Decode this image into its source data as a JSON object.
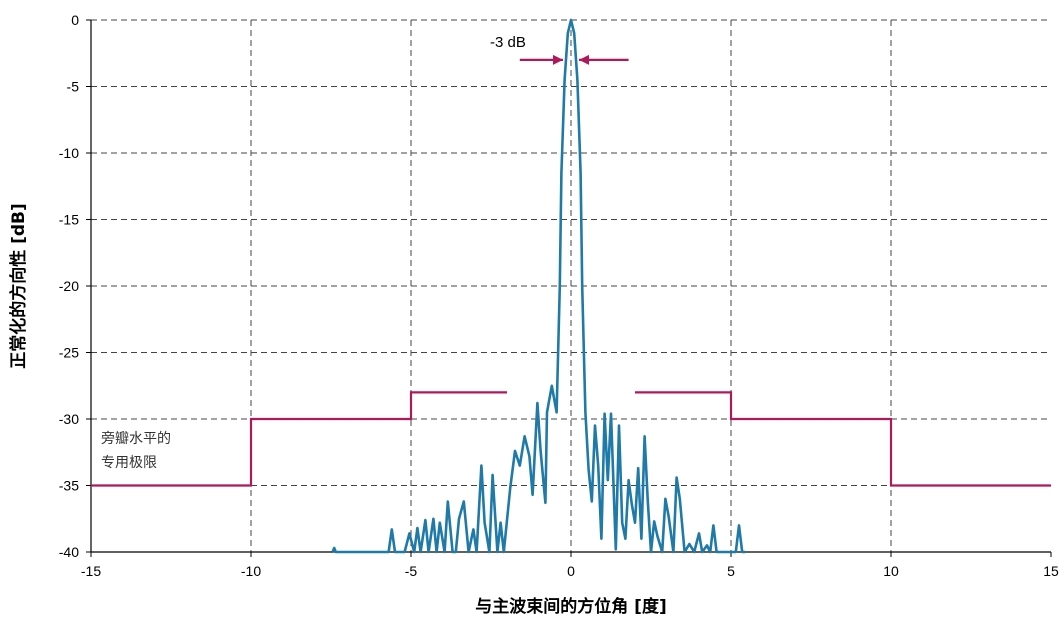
{
  "chart_data": {
    "type": "line",
    "xlabel": "与主波束间的方位角 [度]",
    "ylabel": "正常化的方向性 [dB]",
    "xlim": [
      -15,
      15
    ],
    "ylim": [
      -40,
      0
    ],
    "x_ticks": [
      "-15",
      "-10",
      "-5",
      "0",
      "5",
      "10",
      "15"
    ],
    "y_ticks": [
      "0",
      "-5",
      "-10",
      "-15",
      "-20",
      "-25",
      "-30",
      "-35",
      "-40"
    ],
    "grid": "dashed",
    "colors": {
      "pattern": "#1f7aa8",
      "limit": "#b0185a",
      "grid": "#444444"
    },
    "series": [
      {
        "name": "",
        "x": [
          -7.45,
          -7.4,
          -7.35,
          -5.7,
          -5.6,
          -5.5,
          -5.4,
          -5.2,
          -5.05,
          -4.9,
          -4.8,
          -4.7,
          -4.55,
          -4.45,
          -4.3,
          -4.2,
          -4.1,
          -3.95,
          -3.85,
          -3.7,
          -3.6,
          -3.5,
          -3.35,
          -3.2,
          -3.05,
          -2.95,
          -2.8,
          -2.7,
          -2.55,
          -2.45,
          -2.3,
          -2.2,
          -2.1,
          -1.9,
          -1.75,
          -1.6,
          -1.45,
          -1.3,
          -1.2,
          -1.05,
          -0.95,
          -0.8,
          -0.75,
          -0.6,
          -0.45,
          -0.35,
          -0.3,
          -0.2,
          -0.1,
          0.0,
          0.1,
          0.2,
          0.3,
          0.35,
          0.45,
          0.55,
          0.65,
          0.75,
          0.85,
          0.95,
          1.05,
          1.15,
          1.25,
          1.4,
          1.5,
          1.6,
          1.7,
          1.8,
          1.9,
          2.0,
          2.1,
          2.2,
          2.3,
          2.4,
          2.5,
          2.6,
          2.7,
          2.85,
          2.95,
          3.05,
          3.2,
          3.3,
          3.4,
          3.55,
          3.7,
          3.85,
          4.0,
          4.1,
          4.25,
          4.35,
          4.45,
          4.55,
          5.15,
          5.25,
          5.35,
          5.45
        ],
        "y": [
          -40,
          -39.7,
          -40,
          -40,
          -38.3,
          -40,
          -40,
          -40,
          -38.6,
          -40,
          -38.2,
          -40,
          -37.6,
          -40,
          -37.5,
          -40,
          -37.8,
          -40,
          -36.2,
          -40,
          -40,
          -37.5,
          -36.2,
          -40,
          -38.3,
          -40,
          -33.5,
          -37.8,
          -40,
          -34.2,
          -40,
          -37.8,
          -40,
          -35.2,
          -32.4,
          -33.5,
          -31.3,
          -32.8,
          -35.7,
          -28.8,
          -32.4,
          -36.3,
          -29.5,
          -27.5,
          -29.5,
          -20.0,
          -11.5,
          -4.5,
          -1.0,
          0.0,
          -1.0,
          -4.5,
          -11.5,
          -20.0,
          -29.5,
          -33.8,
          -36.2,
          -30.5,
          -33.5,
          -39.0,
          -29.6,
          -34.6,
          -29.6,
          -39.8,
          -30.5,
          -37.8,
          -39.0,
          -34.6,
          -36.4,
          -37.8,
          -33.7,
          -39.0,
          -31.3,
          -36.2,
          -40,
          -37.7,
          -38.8,
          -40,
          -36.0,
          -37.3,
          -40,
          -34.4,
          -36.0,
          -40,
          -39.4,
          -40,
          -38.6,
          -40,
          -39.5,
          -40,
          -38.0,
          -40,
          -40,
          -38.0,
          -40,
          -40
        ]
      }
    ],
    "limit_line": {
      "name": "旁瓣水平的专用极限",
      "segments": [
        {
          "x": [
            -15,
            -10,
            -10,
            -5,
            -5,
            -2
          ],
          "y": [
            -35,
            -35,
            -30,
            -30,
            -28,
            -28
          ]
        },
        {
          "x": [
            2,
            5,
            5,
            10,
            10,
            15
          ],
          "y": [
            -28,
            -28,
            -30,
            -30,
            -35,
            -35
          ]
        }
      ]
    },
    "annotations": {
      "beamwidth_label": "-3 dB",
      "beamwidth_arrows": {
        "level": -3,
        "left_tip": -0.25,
        "right_tip": 0.25,
        "left_tail": -1.6,
        "right_tail": 1.8
      },
      "limit_label_line1": "旁瓣水平的",
      "limit_label_line2": "专用极限"
    }
  }
}
